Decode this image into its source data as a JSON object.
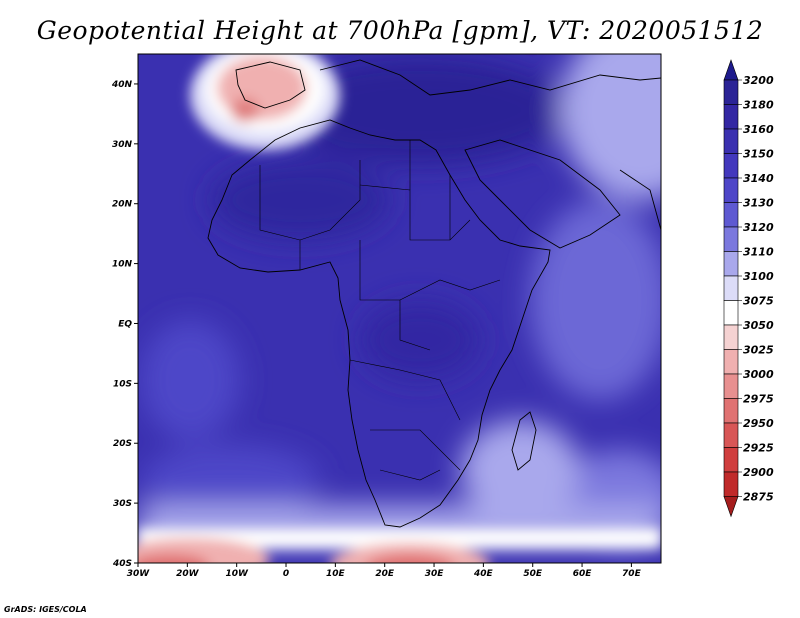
{
  "title": "Geopotential Height at 700hPa [gpm], VT: 2020051512",
  "credit": "GrADS: IGES/COLA",
  "map": {
    "lon_range": [
      -30,
      76
    ],
    "lat_range": [
      -40,
      45
    ],
    "lat_ticks": [
      {
        "lat": 40,
        "label": "40N"
      },
      {
        "lat": 30,
        "label": "30N"
      },
      {
        "lat": 20,
        "label": "20N"
      },
      {
        "lat": 10,
        "label": "10N"
      },
      {
        "lat": 0,
        "label": "EQ"
      },
      {
        "lat": -10,
        "label": "10S"
      },
      {
        "lat": -20,
        "label": "20S"
      },
      {
        "lat": -30,
        "label": "30S"
      },
      {
        "lat": -40,
        "label": "40S"
      }
    ],
    "lon_ticks": [
      {
        "lon": -30,
        "label": "30W"
      },
      {
        "lon": -20,
        "label": "20W"
      },
      {
        "lon": -10,
        "label": "10W"
      },
      {
        "lon": 0,
        "label": "0"
      },
      {
        "lon": 10,
        "label": "10E"
      },
      {
        "lon": 20,
        "label": "20E"
      },
      {
        "lon": 30,
        "label": "30E"
      },
      {
        "lon": 40,
        "label": "40E"
      },
      {
        "lon": 50,
        "label": "50E"
      },
      {
        "lon": 60,
        "label": "60E"
      },
      {
        "lon": 70,
        "label": "70E"
      }
    ]
  },
  "colorbar": {
    "levels": [
      "3200",
      "3180",
      "3160",
      "3150",
      "3140",
      "3130",
      "3120",
      "3110",
      "3100",
      "3075",
      "3050",
      "3025",
      "3000",
      "2975",
      "2950",
      "2925",
      "2900",
      "2875"
    ],
    "colors": [
      "#1e1a8c",
      "#2b2496",
      "#3327a3",
      "#3a30b0",
      "#4338bd",
      "#4e46c8",
      "#5e59d2",
      "#7b78de",
      "#a9a8ec",
      "#dcdcf8",
      "#ffffff",
      "#f5d2d2",
      "#f0b0b0",
      "#e89090",
      "#e07272",
      "#d85656",
      "#d03e3e",
      "#c02a2a",
      "#a51d1d"
    ]
  }
}
